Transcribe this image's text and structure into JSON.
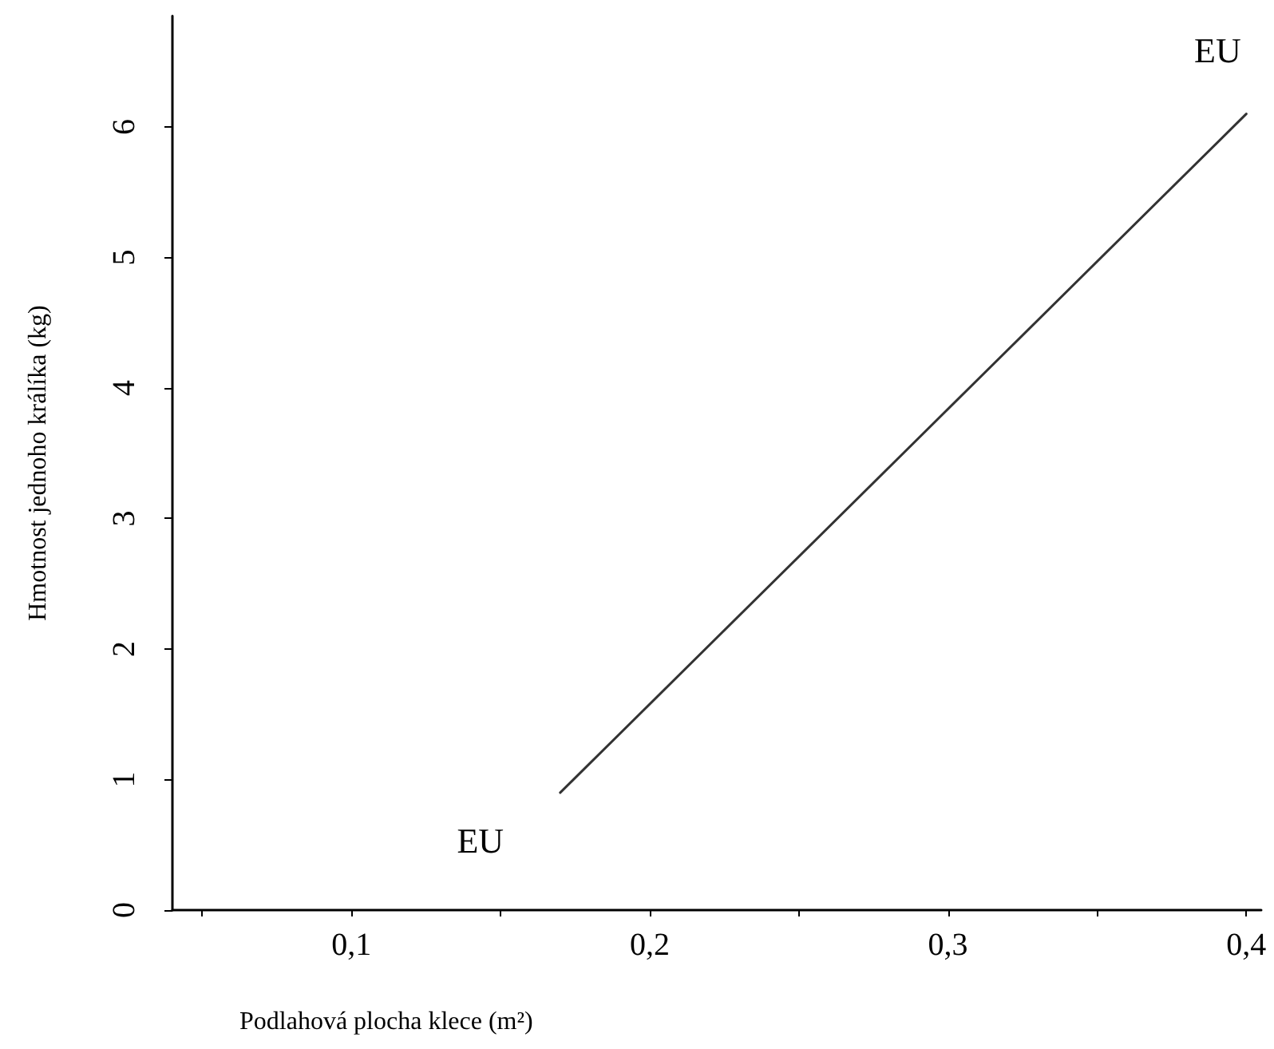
{
  "chart_data": {
    "type": "line",
    "xlabel": "Podlahová plocha klece (m²)",
    "ylabel": "Hmotnost jednoho králíka (kg)",
    "x": [
      0.17,
      0.4
    ],
    "series": [
      {
        "color": "#333333",
        "values": [
          0.9,
          6.1
        ]
      }
    ],
    "xlim": [
      0.04,
      0.405
    ],
    "xticks": [
      {
        "value": 0.05,
        "label": null
      },
      {
        "value": 0.1,
        "label": "0,1"
      },
      {
        "value": 0.15,
        "label": null
      },
      {
        "value": 0.2,
        "label": "0,2"
      },
      {
        "value": 0.25,
        "label": null
      },
      {
        "value": 0.3,
        "label": "0,3"
      },
      {
        "value": 0.35,
        "label": null
      },
      {
        "value": 0.4,
        "label": "0,4"
      }
    ],
    "ylim": [
      0,
      6.85
    ],
    "yticks": [
      0,
      1,
      2,
      3,
      4,
      5,
      6
    ],
    "annotations": [
      "EU",
      "EU"
    ],
    "grid": false,
    "marker": "none",
    "line_style": "solid"
  }
}
